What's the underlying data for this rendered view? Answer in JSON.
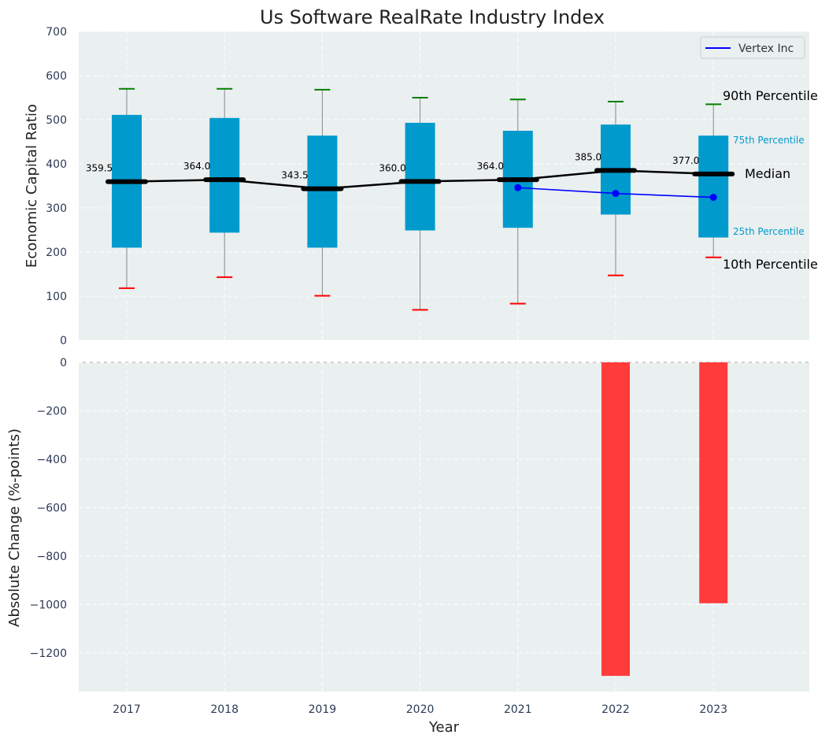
{
  "chart_data": [
    {
      "type": "box",
      "title": "Us Software RealRate Industry Index",
      "ylabel": "Economic Capital Ratio",
      "ylim": [
        0,
        700
      ],
      "yticks": [
        0,
        100,
        200,
        300,
        400,
        500,
        600,
        700
      ],
      "categories": [
        "2017",
        "2018",
        "2019",
        "2020",
        "2021",
        "2022",
        "2023"
      ],
      "p10": [
        118,
        143,
        101,
        69,
        83,
        147,
        188
      ],
      "p25": [
        210,
        244,
        210,
        249,
        255,
        285,
        233
      ],
      "median": [
        359.5,
        364.0,
        343.5,
        360.0,
        364.0,
        385.0,
        377.0
      ],
      "p75": [
        511,
        504,
        464,
        493,
        475,
        489,
        464
      ],
      "p90": [
        570,
        570,
        568,
        550,
        546,
        541,
        535
      ],
      "median_labels": [
        "359.5",
        "364.0",
        "343.5",
        "360.0",
        "364.0",
        "385.0",
        "377.0"
      ],
      "series": [
        {
          "name": "Vertex Inc",
          "color": "#0000ff",
          "x": [
            "2021",
            "2022",
            "2023"
          ],
          "values": [
            346,
            333,
            324
          ]
        }
      ],
      "annotations": {
        "p90": "90th Percentile",
        "p75": "75th Percentile",
        "median": "Median",
        "p25": "25th Percentile",
        "p10": "10th Percentile"
      },
      "legend": {
        "position": "top-right"
      }
    },
    {
      "type": "bar",
      "ylabel": "Absolute Change (%-points)",
      "xlabel": "Year",
      "ylim": [
        -1360,
        0
      ],
      "yticks": [
        0,
        -200,
        -400,
        -600,
        -800,
        -1000,
        -1200
      ],
      "ytick_labels": [
        "0",
        "−200",
        "−400",
        "−600",
        "−800",
        "−1000",
        "−1200"
      ],
      "categories": [
        "2017",
        "2018",
        "2019",
        "2020",
        "2021",
        "2022",
        "2023"
      ],
      "values": [
        0,
        0,
        0,
        0,
        0,
        -1295,
        -995
      ],
      "color": "#ff3b3b"
    }
  ],
  "colors": {
    "panel_bg": "#eaeff0",
    "grid": "#ffffff",
    "box_fill": "#009acd",
    "whisker": "#888888",
    "p90_cap": "#008000",
    "p10_cap": "#ff0000",
    "median": "#000000",
    "annotation_blue": "#009acd"
  }
}
